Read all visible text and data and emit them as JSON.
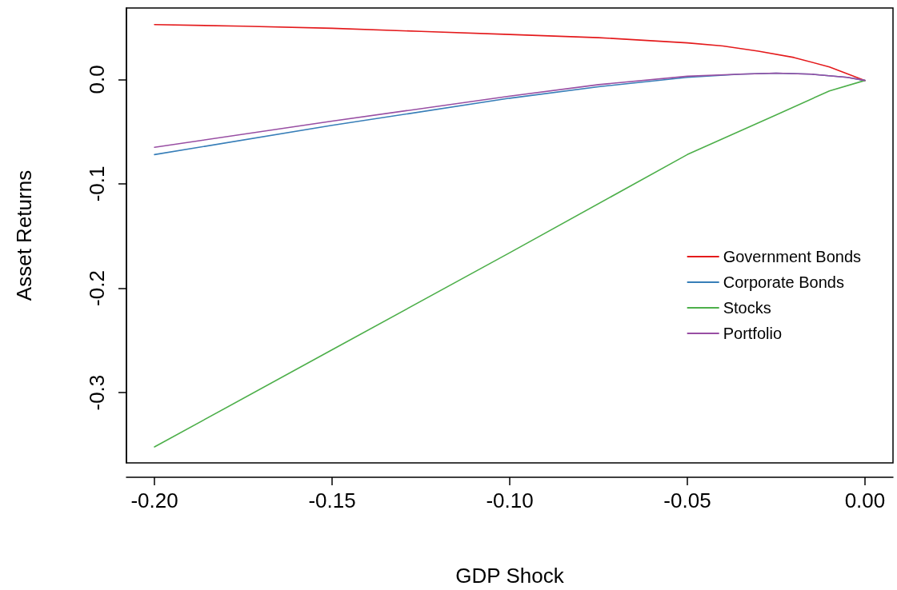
{
  "chart_data": {
    "type": "line",
    "xlabel": "GDP Shock",
    "ylabel": "Asset Returns",
    "xlim": [
      -0.2079,
      0.0079
    ],
    "ylim": [
      -0.3673,
      0.0684
    ],
    "xticks": [
      {
        "value": -0.2,
        "label": "-0.20"
      },
      {
        "value": -0.15,
        "label": "-0.15"
      },
      {
        "value": -0.1,
        "label": "-0.10"
      },
      {
        "value": -0.05,
        "label": "-0.05"
      },
      {
        "value": 0,
        "label": "0.00"
      }
    ],
    "yticks": [
      -0.3,
      -0.2,
      -0.1,
      {
        "value": 0,
        "label": "0.0"
      }
    ],
    "grid": false,
    "legend": "right",
    "marker": "none",
    "line_style": "solid",
    "series": [
      {
        "name": "Government Bonds",
        "color": "#e41a1c",
        "x": [
          -0.2,
          -0.175,
          -0.15,
          -0.125,
          -0.1,
          -0.075,
          -0.05,
          -0.04,
          -0.03,
          -0.02,
          -0.01,
          0
        ],
        "values": [
          0.0525,
          0.051,
          0.049,
          0.046,
          0.043,
          0.04,
          0.035,
          0.032,
          0.027,
          0.021,
          0.012,
          -0.001
        ]
      },
      {
        "name": "Corporate Bonds",
        "color": "#377eb8",
        "x": [
          -0.2,
          -0.15,
          -0.1,
          -0.075,
          -0.05,
          -0.035,
          -0.025,
          -0.015,
          -0.005,
          0
        ],
        "values": [
          -0.072,
          -0.044,
          -0.018,
          -0.007,
          0.002,
          0.005,
          0.006,
          0.005,
          0.002,
          -0.001
        ]
      },
      {
        "name": "Stocks",
        "color": "#4daf4a",
        "x": [
          -0.2,
          -0.15,
          -0.1,
          -0.05,
          -0.025,
          -0.01,
          0
        ],
        "values": [
          -0.352,
          -0.259,
          -0.166,
          -0.072,
          -0.034,
          -0.011,
          -0.001
        ]
      },
      {
        "name": "Portfolio",
        "color": "#984ea3",
        "x": [
          -0.2,
          -0.15,
          -0.1,
          -0.075,
          -0.05,
          -0.035,
          -0.025,
          -0.015,
          -0.005,
          0
        ],
        "values": [
          -0.065,
          -0.04,
          -0.016,
          -0.005,
          0.003,
          0.005,
          0.006,
          0.005,
          0.002,
          -0.001
        ]
      }
    ]
  }
}
